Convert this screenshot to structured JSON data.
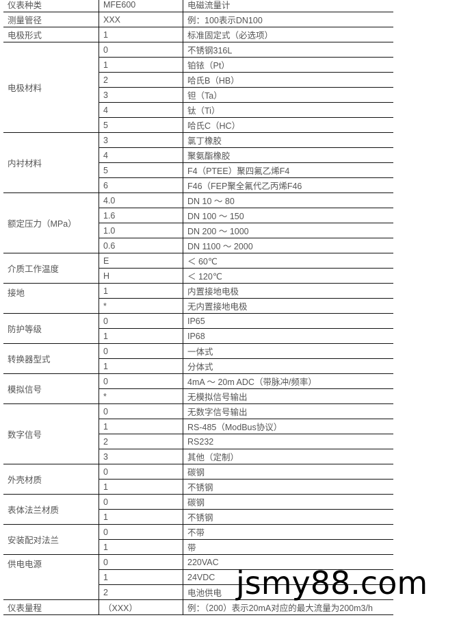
{
  "groups": [
    {
      "label": "仪表种类",
      "rows": [
        [
          "MFE600",
          "电磁流量计"
        ]
      ]
    },
    {
      "label": "测量管径",
      "rows": [
        [
          "XXX",
          "例：100表示DN100"
        ]
      ]
    },
    {
      "label": "电极形式",
      "rows": [
        [
          "1",
          "标准固定式（必选项）"
        ]
      ]
    },
    {
      "label": "电极材料",
      "rows": [
        [
          "0",
          "不锈钢316L"
        ],
        [
          "1",
          "铂铱（Pt）"
        ],
        [
          "2",
          "哈氏B（HB）"
        ],
        [
          "3",
          "钽（Ta）"
        ],
        [
          "4",
          "钛（Ti）"
        ],
        [
          "5",
          "哈氏C（HC）"
        ]
      ]
    },
    {
      "label": "内衬材料",
      "rows": [
        [
          "3",
          "氯丁橡胶"
        ],
        [
          "4",
          "聚氨酯橡胶"
        ],
        [
          "5",
          "F4（PTEE）聚四氟乙烯F4"
        ],
        [
          "6",
          "F46（FEP聚全氟代乙丙烯F46"
        ]
      ]
    },
    {
      "label": "额定压力（MPa）",
      "rows": [
        [
          "4.0",
          "DN 10 ～ 80"
        ],
        [
          "1.6",
          "DN 100 ～ 150"
        ],
        [
          "1.0",
          "DN 200 ～ 1000"
        ],
        [
          "0.6",
          "DN 1100 ～ 2000"
        ]
      ]
    },
    {
      "label": "介质工作温度",
      "rows": [
        [
          "E",
          "＜ 60℃"
        ],
        [
          "H",
          "＜ 120℃"
        ]
      ]
    },
    {
      "label": "接地",
      "top": true,
      "rows": [
        [
          "1",
          "内置接地电极"
        ],
        [
          "*",
          "无内置接地电极"
        ]
      ]
    },
    {
      "label": "防护等级",
      "rows": [
        [
          "0",
          "IP65"
        ],
        [
          "1",
          "IP68"
        ]
      ]
    },
    {
      "label": "转换器型式",
      "rows": [
        [
          "0",
          "一体式"
        ],
        [
          "1",
          "分体式"
        ]
      ]
    },
    {
      "label": "模拟信号",
      "rows": [
        [
          "0",
          "4mA ～ 20m ADC（带脉冲/频率）"
        ],
        [
          "*",
          "无模拟信号输出"
        ]
      ]
    },
    {
      "label": "数字信号",
      "rows": [
        [
          "0",
          "无数字信号输出"
        ],
        [
          "1",
          "RS-485（ModBus协议）"
        ],
        [
          "2",
          "RS232"
        ],
        [
          "3",
          "其他（定制）"
        ]
      ]
    },
    {
      "label": "外壳材质",
      "rows": [
        [
          "0",
          "碳钢"
        ],
        [
          "1",
          "不锈钢"
        ]
      ]
    },
    {
      "label": "表体法兰材质",
      "rows": [
        [
          "0",
          "碳钢"
        ],
        [
          "1",
          "不锈钢"
        ]
      ]
    },
    {
      "label": "安装配对法兰",
      "rows": [
        [
          "0",
          "不带"
        ],
        [
          "1",
          "带"
        ]
      ]
    },
    {
      "label": "供电电源",
      "top": true,
      "rows": [
        [
          "0",
          "220VAC"
        ],
        [
          "1",
          "24VDC"
        ],
        [
          "2",
          "电池供电"
        ]
      ]
    },
    {
      "label": "仪表量程",
      "rows": [
        [
          "（XXX）",
          "例：（200）表示20mA对应的最大流量为200m3/h"
        ]
      ]
    }
  ],
  "watermark": "jsmy88.com"
}
